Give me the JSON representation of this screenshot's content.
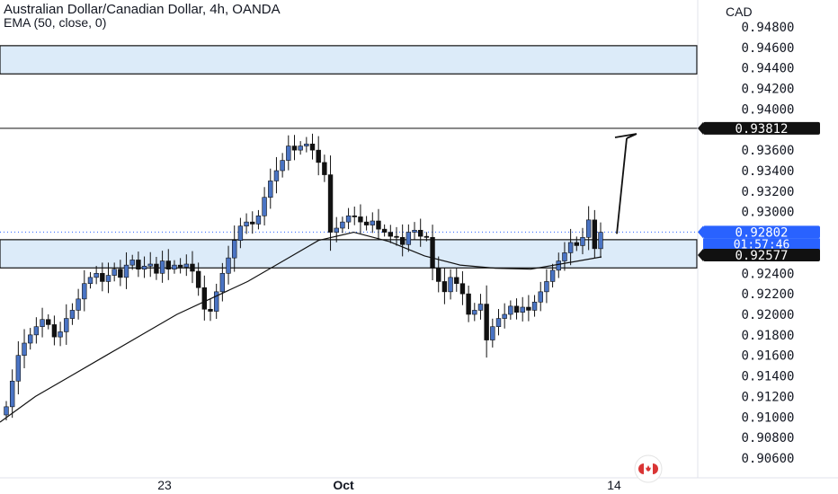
{
  "header": {
    "title": "Australian Dollar/Canadian Dollar, 4h, OANDA",
    "indicator": "EMA (50, close, 0)"
  },
  "price_axis": {
    "currency": "CAD",
    "ticks": [
      "0.94800",
      "0.94600",
      "0.94400",
      "0.94200",
      "0.94000",
      "0.93600",
      "0.93400",
      "0.93200",
      "0.93000",
      "0.92400",
      "0.92200",
      "0.92000",
      "0.91800",
      "0.91600",
      "0.91400",
      "0.91200",
      "0.91000",
      "0.90800",
      "0.90600"
    ],
    "labels": {
      "level_high": "0.93812",
      "current_price": "0.92802",
      "countdown": "01:57:46",
      "level_support": "0.92577"
    }
  },
  "time_axis": {
    "labels": [
      "23",
      "Oct",
      "14"
    ]
  },
  "colors": {
    "bull": "#4a74c4",
    "bear": "#111111",
    "zone_fill": "#dcebf9",
    "current_price": "#2962ff",
    "flag_red": "#d93535"
  },
  "icons": {
    "flag": "canada-flag-icon"
  },
  "chart_data": {
    "type": "candlestick",
    "title": "Australian Dollar/Canadian Dollar, 4h, OANDA",
    "ylabel": "CAD",
    "ylim": [
      0.906,
      0.949
    ],
    "x_ticks": [
      "23",
      "Oct",
      "14"
    ],
    "price_path": [
      0.911,
      0.9135,
      0.916,
      0.9172,
      0.918,
      0.9188,
      0.9195,
      0.919,
      0.9178,
      0.9183,
      0.9196,
      0.9204,
      0.9215,
      0.923,
      0.9236,
      0.924,
      0.9232,
      0.9238,
      0.9244,
      0.9236,
      0.9248,
      0.9253,
      0.9244,
      0.9247,
      0.9249,
      0.924,
      0.9252,
      0.9244,
      0.9248,
      0.9246,
      0.9249,
      0.9242,
      0.9226,
      0.9205,
      0.9203,
      0.9222,
      0.924,
      0.9255,
      0.9272,
      0.9286,
      0.929,
      0.9288,
      0.9296,
      0.9314,
      0.933,
      0.934,
      0.935,
      0.9364,
      0.936,
      0.9364,
      0.9366,
      0.936,
      0.9348,
      0.9336,
      0.928,
      0.9284,
      0.929,
      0.9296,
      0.9295,
      0.929,
      0.9287,
      0.9291,
      0.9283,
      0.928,
      0.9276,
      0.9275,
      0.9268,
      0.928,
      0.9282,
      0.9276,
      0.9275,
      0.9245,
      0.9232,
      0.9222,
      0.9236,
      0.923,
      0.922,
      0.92,
      0.9204,
      0.921,
      0.9175,
      0.9188,
      0.9196,
      0.92,
      0.9208,
      0.9202,
      0.9207,
      0.9204,
      0.9212,
      0.9222,
      0.9232,
      0.9243,
      0.9252,
      0.926,
      0.927,
      0.9267,
      0.9275,
      0.9292,
      0.9264,
      0.928
    ],
    "ema": {
      "name": "EMA (50, close, 0)",
      "values": [
        0.9095,
        0.912,
        0.914,
        0.916,
        0.918,
        0.92,
        0.9216,
        0.9232,
        0.9252,
        0.9272,
        0.928,
        0.9271,
        0.9257,
        0.9248,
        0.9245,
        0.9244,
        0.925,
        0.9256
      ]
    },
    "annotations": {
      "resistance_zone": [
        0.9443,
        0.9453
      ],
      "horizontal_line": 0.93812,
      "support_zone": [
        0.9254,
        0.9264
      ],
      "current_price": 0.92802,
      "projection_target": 0.9375
    }
  }
}
